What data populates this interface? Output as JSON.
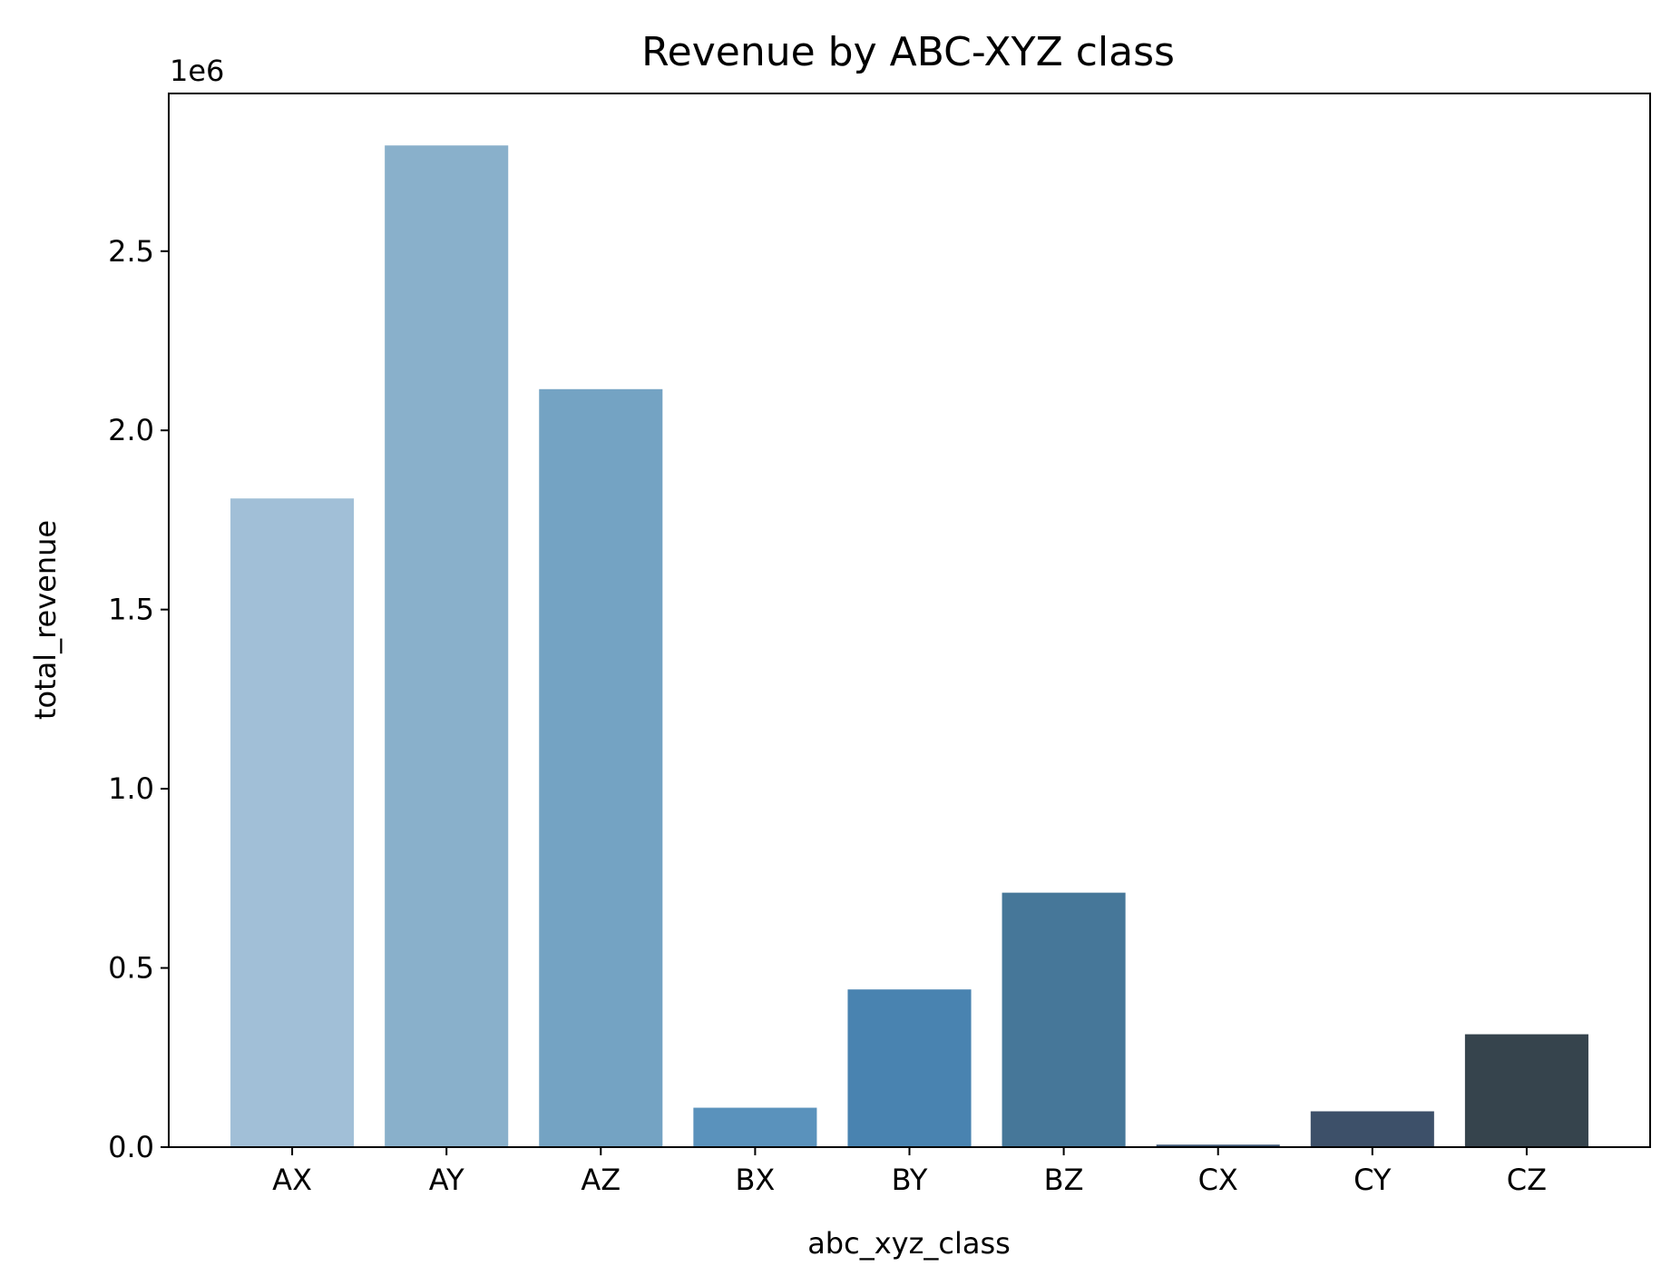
{
  "chart_data": {
    "type": "bar",
    "title": "Revenue by ABC-XYZ class",
    "xlabel": "abc_xyz_class",
    "ylabel": "total_revenue",
    "y_offset_label": "1e6",
    "y_scale": 1000000,
    "categories": [
      "AX",
      "AY",
      "AZ",
      "BX",
      "BY",
      "BZ",
      "CX",
      "CY",
      "CZ"
    ],
    "values": [
      1810000,
      2795000,
      2115000,
      110000,
      440000,
      710000,
      7000,
      100000,
      315000
    ],
    "colors": [
      "#a1bfd7",
      "#89b0cb",
      "#74a3c3",
      "#5a92bc",
      "#4983b0",
      "#467799",
      "#3e5876",
      "#3d5069",
      "#36444d"
    ],
    "ylim": [
      0,
      2940000
    ],
    "y_ticks": [
      0,
      500000,
      1000000,
      1500000,
      2000000,
      2500000
    ],
    "y_tick_labels": [
      "0.0",
      "0.5",
      "1.0",
      "1.5",
      "2.0",
      "2.5"
    ],
    "grid": false,
    "legend": "none"
  }
}
